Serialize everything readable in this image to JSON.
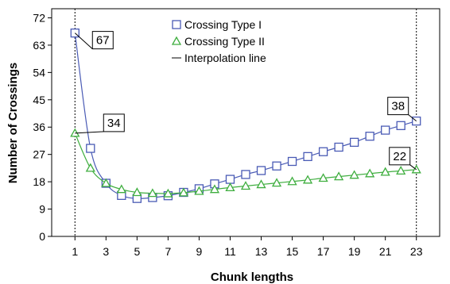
{
  "chart_data": {
    "type": "line",
    "xlabel": "Chunk lengths",
    "ylabel": "Number of Crossings",
    "xlim": [
      -0.5,
      24.5
    ],
    "ylim": [
      0,
      75
    ],
    "x_ticks": [
      1,
      3,
      5,
      7,
      9,
      11,
      13,
      15,
      17,
      19,
      21,
      23
    ],
    "y_ticks": [
      0,
      9,
      18,
      27,
      36,
      45,
      54,
      63,
      72
    ],
    "vertical_reference_lines_at_x": [
      1,
      23
    ],
    "legend_position": "top-center",
    "grid": false,
    "x": [
      1,
      2,
      3,
      4,
      5,
      6,
      7,
      8,
      9,
      10,
      11,
      12,
      13,
      14,
      15,
      16,
      17,
      18,
      19,
      20,
      21,
      22,
      23
    ],
    "series": [
      {
        "name": "Crossing Type I",
        "marker": "square",
        "color": "#4a5bb5",
        "values": [
          67,
          29,
          17.5,
          13.5,
          12.5,
          12.8,
          13.4,
          14.5,
          15.7,
          17.3,
          18.8,
          20.4,
          21.7,
          23.2,
          24.7,
          26.3,
          27.9,
          29.4,
          31,
          33,
          35,
          36.5,
          38
        ]
      },
      {
        "name": "Crossing Type II",
        "marker": "triangle",
        "color": "#3fae3f",
        "values": [
          34,
          22.5,
          17.5,
          15.5,
          14.5,
          14.2,
          14.1,
          14.4,
          14.9,
          15.5,
          16.1,
          16.6,
          17.1,
          17.6,
          18.1,
          18.6,
          19.2,
          19.7,
          20.2,
          20.7,
          21.2,
          21.6,
          22
        ]
      }
    ],
    "interpolation_line_label": "Interpolation line",
    "callouts": [
      {
        "text": "67",
        "series": 0,
        "x": 1
      },
      {
        "text": "34",
        "series": 1,
        "x": 1
      },
      {
        "text": "38",
        "series": 0,
        "x": 23
      },
      {
        "text": "22",
        "series": 1,
        "x": 23
      }
    ]
  }
}
